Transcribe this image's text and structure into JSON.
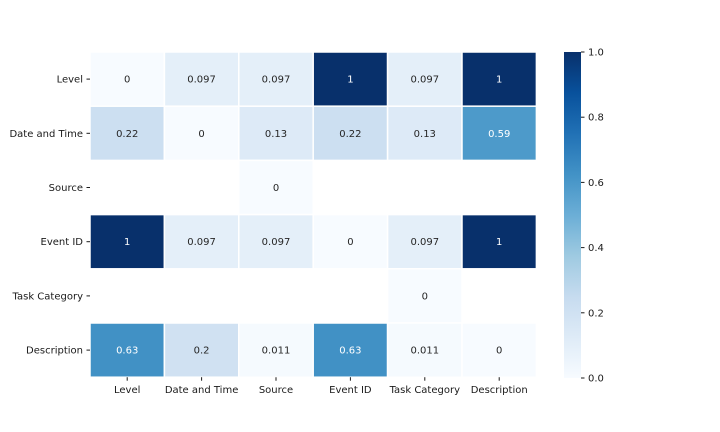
{
  "chart_data": {
    "type": "heatmap",
    "title": "",
    "xlabel": "",
    "ylabel": "",
    "x_categories": [
      "Level",
      "Date and Time",
      "Source",
      "Event ID",
      "Task Category",
      "Description"
    ],
    "y_categories": [
      "Level",
      "Date and Time",
      "Source",
      "Event ID",
      "Task Category",
      "Description"
    ],
    "values": [
      [
        0,
        0.097,
        0.097,
        1,
        0.097,
        1
      ],
      [
        0.22,
        0,
        0.13,
        0.22,
        0.13,
        0.59
      ],
      [
        null,
        null,
        0,
        null,
        null,
        null
      ],
      [
        1,
        0.097,
        0.097,
        0,
        0.097,
        1
      ],
      [
        null,
        null,
        null,
        null,
        0,
        null
      ],
      [
        0.63,
        0.2,
        0.011,
        0.63,
        0.011,
        0
      ]
    ],
    "value_labels": [
      [
        "0",
        "0.097",
        "0.097",
        "1",
        "0.097",
        "1"
      ],
      [
        "0.22",
        "0",
        "0.13",
        "0.22",
        "0.13",
        "0.59"
      ],
      [
        "",
        "",
        "0",
        "",
        "",
        ""
      ],
      [
        "1",
        "0.097",
        "0.097",
        "0",
        "0.097",
        "1"
      ],
      [
        "",
        "",
        "",
        "",
        "0",
        ""
      ],
      [
        "0.63",
        "0.2",
        "0.011",
        "0.63",
        "0.011",
        "0"
      ]
    ],
    "colormap": "Blues",
    "colorbar": {
      "range": [
        0.0,
        1.0
      ],
      "ticks": [
        0.0,
        0.2,
        0.4,
        0.6,
        0.8,
        1.0
      ],
      "tick_labels": [
        "0.0",
        "0.2",
        "0.4",
        "0.6",
        "0.8",
        "1.0"
      ]
    },
    "grid": false
  }
}
